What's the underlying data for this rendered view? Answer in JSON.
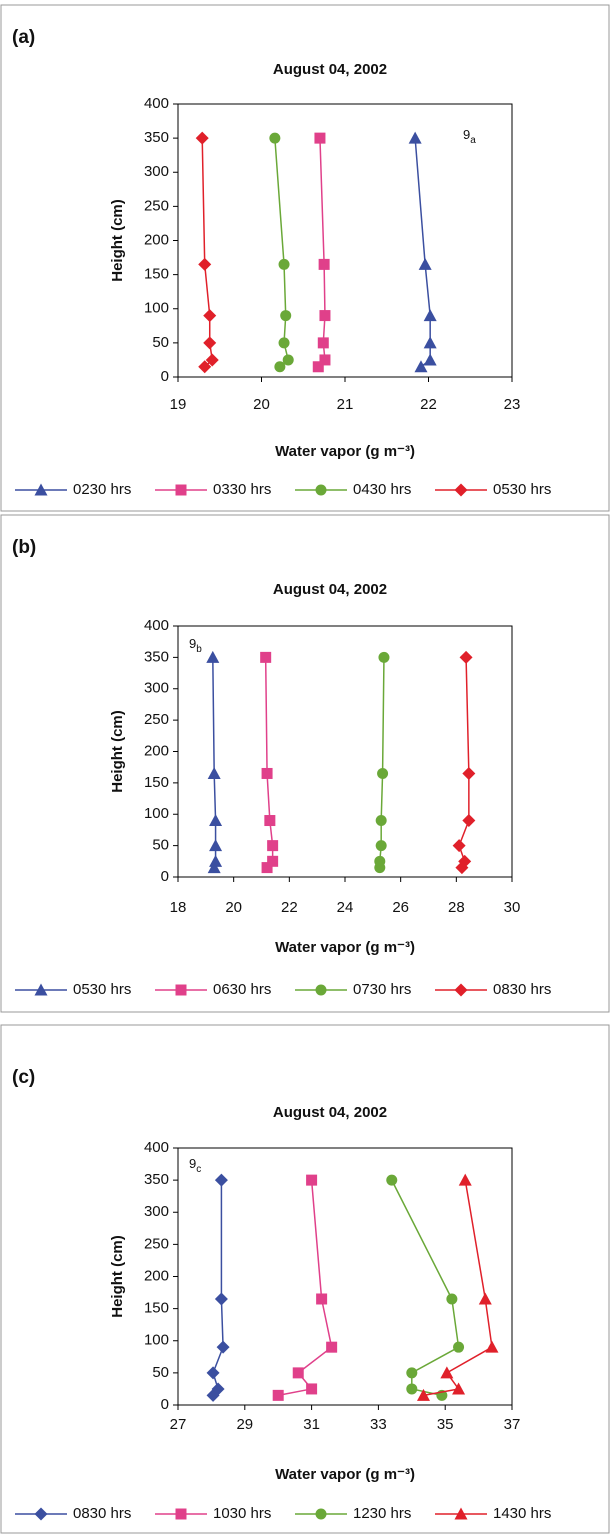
{
  "chart_data": [
    {
      "type": "line",
      "panel_label": "(a)",
      "title": "August 04, 2002",
      "xlabel": "Water vapor (g m⁻³)",
      "ylabel": "Height (cm)",
      "annotation": {
        "main": "9",
        "sub": "a"
      },
      "xlim": [
        19,
        23
      ],
      "xticks": [
        19,
        20,
        21,
        22,
        23
      ],
      "ylim": [
        0,
        400
      ],
      "yticks": [
        0,
        50,
        100,
        150,
        200,
        250,
        300,
        350,
        400
      ],
      "grid": false,
      "series": [
        {
          "name": "0230 hrs",
          "color": "#3b4fa0",
          "marker": "triangle",
          "x": [
            21.91,
            22.02,
            22.02,
            22.02,
            21.96,
            21.84
          ],
          "y": [
            15,
            25,
            50,
            90,
            165,
            350
          ]
        },
        {
          "name": "0330 hrs",
          "color": "#e0408a",
          "marker": "square",
          "x": [
            20.68,
            20.76,
            20.74,
            20.76,
            20.75,
            20.7
          ],
          "y": [
            15,
            25,
            50,
            90,
            165,
            350
          ]
        },
        {
          "name": "0430 hrs",
          "color": "#6aa838",
          "marker": "circle",
          "x": [
            20.22,
            20.32,
            20.27,
            20.29,
            20.27,
            20.16
          ],
          "y": [
            15,
            25,
            50,
            90,
            165,
            350
          ]
        },
        {
          "name": "0530 hrs",
          "color": "#e0202a",
          "marker": "diamond",
          "x": [
            19.32,
            19.41,
            19.38,
            19.38,
            19.32,
            19.29
          ],
          "y": [
            15,
            25,
            50,
            90,
            165,
            350
          ]
        }
      ]
    },
    {
      "type": "line",
      "panel_label": "(b)",
      "title": "August 04, 2002",
      "xlabel": "Water vapor (g m⁻³)",
      "ylabel": "Height (cm)",
      "annotation": {
        "main": "9",
        "sub": "b"
      },
      "xlim": [
        18,
        30
      ],
      "xticks": [
        18,
        20,
        22,
        24,
        26,
        28,
        30
      ],
      "ylim": [
        0,
        400
      ],
      "yticks": [
        0,
        50,
        100,
        150,
        200,
        250,
        300,
        350,
        400
      ],
      "grid": false,
      "series": [
        {
          "name": "0530 hrs",
          "color": "#3b4fa0",
          "marker": "triangle",
          "x": [
            19.3,
            19.35,
            19.35,
            19.35,
            19.3,
            19.25
          ],
          "y": [
            15,
            25,
            50,
            90,
            165,
            350
          ]
        },
        {
          "name": "0630 hrs",
          "color": "#e0408a",
          "marker": "square",
          "x": [
            21.2,
            21.4,
            21.4,
            21.3,
            21.2,
            21.15
          ],
          "y": [
            15,
            25,
            50,
            90,
            165,
            350
          ]
        },
        {
          "name": "0730 hrs",
          "color": "#6aa838",
          "marker": "circle",
          "x": [
            25.25,
            25.25,
            25.3,
            25.3,
            25.35,
            25.4
          ],
          "y": [
            15,
            25,
            50,
            90,
            165,
            350
          ]
        },
        {
          "name": "0830 hrs",
          "color": "#e0202a",
          "marker": "diamond",
          "x": [
            28.2,
            28.3,
            28.1,
            28.45,
            28.45,
            28.35
          ],
          "y": [
            15,
            25,
            50,
            90,
            165,
            350
          ]
        }
      ]
    },
    {
      "type": "line",
      "panel_label": "(c)",
      "title": "August 04, 2002",
      "xlabel": "Water vapor (g m⁻³)",
      "ylabel": "Height (cm)",
      "annotation": {
        "main": "9",
        "sub": "c"
      },
      "xlim": [
        27,
        37
      ],
      "xticks": [
        27,
        29,
        31,
        33,
        35,
        37
      ],
      "ylim": [
        0,
        400
      ],
      "yticks": [
        0,
        50,
        100,
        150,
        200,
        250,
        300,
        350,
        400
      ],
      "grid": false,
      "series": [
        {
          "name": "0830 hrs",
          "color": "#3b4fa0",
          "marker": "diamond",
          "x": [
            28.05,
            28.2,
            28.05,
            28.35,
            28.3,
            28.3
          ],
          "y": [
            15,
            25,
            50,
            90,
            165,
            350
          ]
        },
        {
          "name": "1030 hrs",
          "color": "#e0408a",
          "marker": "square",
          "x": [
            30.0,
            31.0,
            30.6,
            31.6,
            31.3,
            31.0
          ],
          "y": [
            15,
            25,
            50,
            90,
            165,
            350
          ]
        },
        {
          "name": "1230 hrs",
          "color": "#6aa838",
          "marker": "circle",
          "x": [
            34.9,
            34.0,
            34.0,
            35.4,
            35.2,
            33.4
          ],
          "y": [
            15,
            25,
            50,
            90,
            165,
            350
          ]
        },
        {
          "name": "1430 hrs",
          "color": "#e0202a",
          "marker": "triangle",
          "x": [
            34.35,
            35.4,
            35.05,
            36.4,
            36.2,
            35.6
          ],
          "y": [
            15,
            25,
            50,
            90,
            165,
            350
          ]
        }
      ]
    }
  ]
}
